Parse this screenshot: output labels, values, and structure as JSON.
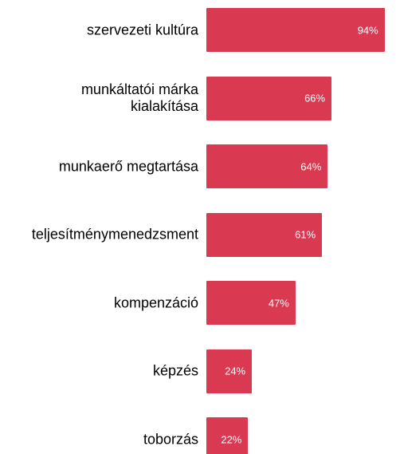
{
  "chart_data": {
    "type": "bar",
    "orientation": "horizontal",
    "categories": [
      "szervezeti kultúra",
      "munkáltatói márka\nkialakítása",
      "munkaerő megtartása",
      "teljesítménymenedzsment",
      "kompenzáció",
      "képzés",
      "toborzás"
    ],
    "values": [
      94,
      66,
      64,
      61,
      47,
      24,
      22
    ],
    "value_labels": [
      "94%",
      "66%",
      "64%",
      "61%",
      "47%",
      "24%",
      "22%"
    ],
    "color": "#d93a51",
    "xlim": [
      0,
      100
    ]
  }
}
